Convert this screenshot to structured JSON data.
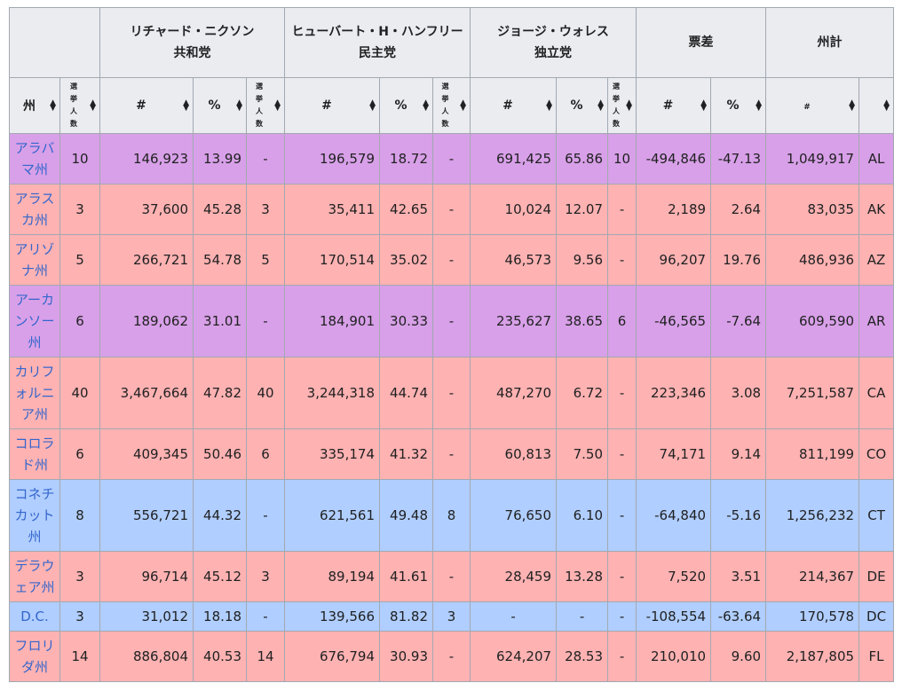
{
  "header": {
    "candidates": [
      {
        "name": "リチャード・ニクソン",
        "party": "共和党"
      },
      {
        "name": "ヒューバート・H・ハンフリー",
        "party": "民主党"
      },
      {
        "name": "ジョージ・ウォレス",
        "party": "独立党"
      }
    ],
    "margin": "票差",
    "total": "州計",
    "state": "州",
    "electors": "選挙人数",
    "num": "#",
    "pct": "%",
    "sort_icon": "sort-icon"
  },
  "colors": {
    "r": "#ffb2b2",
    "p": "#d8a0e8",
    "b": "#b0ceff",
    "link": "#3366cc"
  },
  "rows": [
    {
      "c": "p",
      "state": "アラバマ州",
      "ev": "10",
      "n1": "146,923",
      "p1": "13.99",
      "e1": "-",
      "n2": "196,579",
      "p2": "18.72",
      "e2": "-",
      "n3": "691,425",
      "p3": "65.86",
      "e3": "10",
      "mn": "-494,846",
      "mp": "-47.13",
      "tot": "1,049,917",
      "ab": "AL"
    },
    {
      "c": "r",
      "state": "アラスカ州",
      "ev": "3",
      "n1": "37,600",
      "p1": "45.28",
      "e1": "3",
      "n2": "35,411",
      "p2": "42.65",
      "e2": "-",
      "n3": "10,024",
      "p3": "12.07",
      "e3": "-",
      "mn": "2,189",
      "mp": "2.64",
      "tot": "83,035",
      "ab": "AK"
    },
    {
      "c": "r",
      "state": "アリゾナ州",
      "ev": "5",
      "n1": "266,721",
      "p1": "54.78",
      "e1": "5",
      "n2": "170,514",
      "p2": "35.02",
      "e2": "-",
      "n3": "46,573",
      "p3": "9.56",
      "e3": "-",
      "mn": "96,207",
      "mp": "19.76",
      "tot": "486,936",
      "ab": "AZ"
    },
    {
      "c": "p",
      "state": "アーカンソー州",
      "ev": "6",
      "n1": "189,062",
      "p1": "31.01",
      "e1": "-",
      "n2": "184,901",
      "p2": "30.33",
      "e2": "-",
      "n3": "235,627",
      "p3": "38.65",
      "e3": "6",
      "mn": "-46,565",
      "mp": "-7.64",
      "tot": "609,590",
      "ab": "AR"
    },
    {
      "c": "r",
      "state": "カリフォルニア州",
      "ev": "40",
      "n1": "3,467,664",
      "p1": "47.82",
      "e1": "40",
      "n2": "3,244,318",
      "p2": "44.74",
      "e2": "-",
      "n3": "487,270",
      "p3": "6.72",
      "e3": "-",
      "mn": "223,346",
      "mp": "3.08",
      "tot": "7,251,587",
      "ab": "CA"
    },
    {
      "c": "r",
      "state": "コロラド州",
      "ev": "6",
      "n1": "409,345",
      "p1": "50.46",
      "e1": "6",
      "n2": "335,174",
      "p2": "41.32",
      "e2": "-",
      "n3": "60,813",
      "p3": "7.50",
      "e3": "-",
      "mn": "74,171",
      "mp": "9.14",
      "tot": "811,199",
      "ab": "CO"
    },
    {
      "c": "b",
      "state": "コネチカット州",
      "ev": "8",
      "n1": "556,721",
      "p1": "44.32",
      "e1": "-",
      "n2": "621,561",
      "p2": "49.48",
      "e2": "8",
      "n3": "76,650",
      "p3": "6.10",
      "e3": "-",
      "mn": "-64,840",
      "mp": "-5.16",
      "tot": "1,256,232",
      "ab": "CT"
    },
    {
      "c": "r",
      "state": "デラウェア州",
      "ev": "3",
      "n1": "96,714",
      "p1": "45.12",
      "e1": "3",
      "n2": "89,194",
      "p2": "41.61",
      "e2": "-",
      "n3": "28,459",
      "p3": "13.28",
      "e3": "-",
      "mn": "7,520",
      "mp": "3.51",
      "tot": "214,367",
      "ab": "DE"
    },
    {
      "c": "b",
      "state": "D.C.",
      "ev": "3",
      "n1": "31,012",
      "p1": "18.18",
      "e1": "-",
      "n2": "139,566",
      "p2": "81.82",
      "e2": "3",
      "n3": "-",
      "p3": "-",
      "e3": "-",
      "mn": "-108,554",
      "mp": "-63.64",
      "tot": "170,578",
      "ab": "DC"
    },
    {
      "c": "r",
      "state": "フロリダ州",
      "ev": "14",
      "n1": "886,804",
      "p1": "40.53",
      "e1": "14",
      "n2": "676,794",
      "p2": "30.93",
      "e2": "-",
      "n3": "624,207",
      "p3": "28.53",
      "e3": "-",
      "mn": "210,010",
      "mp": "9.60",
      "tot": "2,187,805",
      "ab": "FL"
    }
  ]
}
